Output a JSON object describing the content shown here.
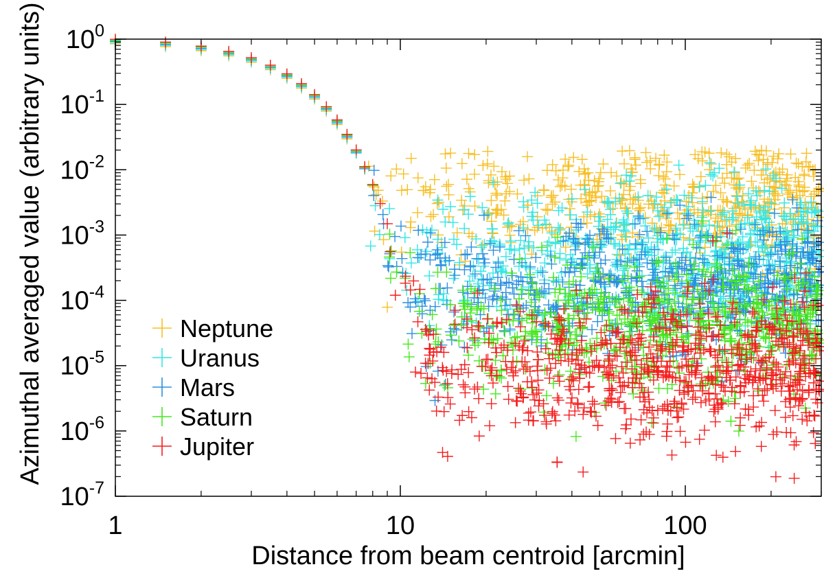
{
  "chart_data": {
    "type": "scatter",
    "title": "",
    "xlabel": "Distance from beam centroid [arcmin]",
    "ylabel": "Azimuthal averaged value (arbitrary units)",
    "x_scale": "log",
    "y_scale": "log",
    "xlim": [
      1,
      300
    ],
    "ylim": [
      1e-07,
      1
    ],
    "x_ticks": [
      {
        "value": 1,
        "label": "1"
      },
      {
        "value": 10,
        "label": "10"
      },
      {
        "value": 100,
        "label": "100"
      }
    ],
    "y_ticks": [
      {
        "value": 1,
        "base": "10",
        "exp": "0"
      },
      {
        "value": 0.1,
        "base": "10",
        "exp": "-1"
      },
      {
        "value": 0.01,
        "base": "10",
        "exp": "-2"
      },
      {
        "value": 0.001,
        "base": "10",
        "exp": "-3"
      },
      {
        "value": 0.0001,
        "base": "10",
        "exp": "-4"
      },
      {
        "value": 1e-05,
        "base": "10",
        "exp": "-5"
      },
      {
        "value": 1e-06,
        "base": "10",
        "exp": "-6"
      },
      {
        "value": 1e-07,
        "base": "10",
        "exp": "-7"
      }
    ],
    "grid": false,
    "legend_position": "bottom-left",
    "marker": "plus",
    "series": [
      {
        "name": "Neptune",
        "color": "#f7bf25",
        "core_end": 6.5,
        "floor": 0.003,
        "floor_spread": 0.5
      },
      {
        "name": "Uranus",
        "color": "#33e6e6",
        "core_end": 7.0,
        "floor": 0.0004,
        "floor_spread": 0.55
      },
      {
        "name": "Mars",
        "color": "#2a8fe0",
        "core_end": 7.5,
        "floor": 0.00013,
        "floor_spread": 0.5
      },
      {
        "name": "Saturn",
        "color": "#44e81c",
        "core_end": 8.0,
        "floor": 3.5e-05,
        "floor_spread": 0.5
      },
      {
        "name": "Jupiter",
        "color": "#f51c1c",
        "core_end": 9.0,
        "floor": 7e-06,
        "floor_spread": 0.55
      }
    ]
  }
}
